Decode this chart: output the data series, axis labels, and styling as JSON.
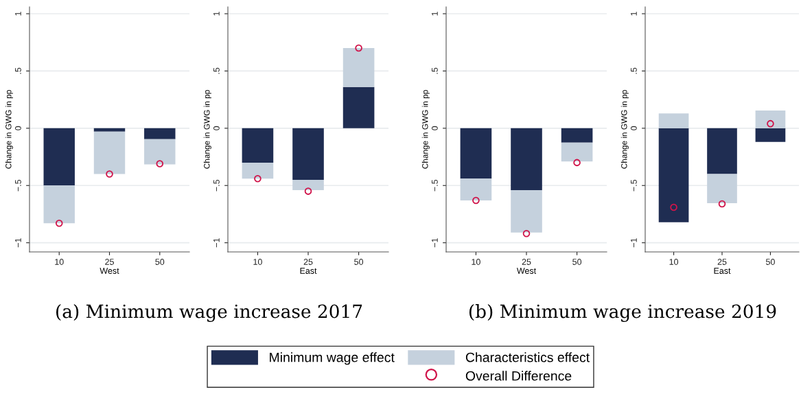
{
  "chart_data": [
    {
      "type": "bar",
      "stacked": true,
      "categories": [
        "10",
        "25",
        "50"
      ],
      "xlabel": "West",
      "ylabel": "Change in GWG in pp",
      "ylim": [
        -1.08,
        1.06
      ],
      "yticks": [
        {
          "value": -1,
          "label": "−1"
        },
        {
          "value": -0.5,
          "label": "−.5"
        },
        0,
        {
          "value": 0.5,
          "label": ".5"
        },
        1
      ],
      "grid": "y",
      "legend": "bottom",
      "annotations": [
        "(a) Minimum wage increase 2017"
      ],
      "series": [
        {
          "name": "Minimum wage effect",
          "color": "#1f2d52",
          "values": [
            -0.5,
            -0.03,
            -0.095
          ]
        },
        {
          "name": "Characteristics effect",
          "color": "#c5d1dd",
          "values": [
            -0.33,
            -0.37,
            -0.22
          ]
        },
        {
          "name": "Overall Difference",
          "type": "scatter",
          "marker": "circle",
          "color": "#d0144a",
          "x": [
            "10",
            "25",
            "50"
          ],
          "values": [
            -0.83,
            -0.4,
            -0.31
          ]
        }
      ]
    },
    {
      "type": "bar",
      "stacked": true,
      "categories": [
        "10",
        "25",
        "50"
      ],
      "xlabel": "East",
      "ylabel": "Change in GWG in pp",
      "ylim": [
        -1.08,
        1.06
      ],
      "yticks": [
        {
          "value": -1,
          "label": "−1"
        },
        {
          "value": -0.5,
          "label": "−.5"
        },
        0,
        {
          "value": 0.5,
          "label": ".5"
        },
        1
      ],
      "grid": "y",
      "series": [
        {
          "color": "#1f2d52",
          "values": [
            -0.3,
            -0.45,
            0.36
          ]
        },
        {
          "color": "#c5d1dd",
          "values": [
            -0.14,
            -0.09,
            0.34
          ]
        },
        {
          "type": "scatter",
          "marker": "circle",
          "color": "#d0144a",
          "x": [
            "10",
            "25",
            "50"
          ],
          "values": [
            -0.44,
            -0.55,
            0.7
          ]
        }
      ]
    },
    {
      "type": "bar",
      "stacked": true,
      "categories": [
        "10",
        "25",
        "50"
      ],
      "xlabel": "West",
      "ylabel": "Change in GWG in pp",
      "ylim": [
        -1.08,
        1.06
      ],
      "yticks": [
        {
          "value": -1,
          "label": "−1"
        },
        {
          "value": -0.5,
          "label": "−.5"
        },
        0,
        {
          "value": 0.5,
          "label": ".5"
        },
        1
      ],
      "grid": "y",
      "annotations": [
        "(b) Minimum wage increase 2019"
      ],
      "series": [
        {
          "color": "#1f2d52",
          "values": [
            -0.44,
            -0.54,
            -0.125
          ]
        },
        {
          "color": "#c5d1dd",
          "values": [
            -0.19,
            -0.37,
            -0.165
          ]
        },
        {
          "type": "scatter",
          "marker": "circle",
          "color": "#d0144a",
          "x": [
            "10",
            "25",
            "50"
          ],
          "values": [
            -0.63,
            -0.92,
            -0.3
          ]
        }
      ]
    },
    {
      "type": "bar",
      "stacked": true,
      "categories": [
        "10",
        "25",
        "50"
      ],
      "xlabel": "East",
      "ylabel": "Change in GWG in pp",
      "ylim": [
        -1.08,
        1.06
      ],
      "yticks": [
        {
          "value": -1,
          "label": "−1"
        },
        {
          "value": -0.5,
          "label": "−.5"
        },
        0,
        {
          "value": 0.5,
          "label": ".5"
        },
        1
      ],
      "grid": "y",
      "series": [
        {
          "color": "#1f2d52",
          "values": [
            -0.82,
            -0.4,
            -0.12
          ]
        },
        {
          "color": "#c5d1dd",
          "values": [
            0.13,
            -0.255,
            0.155
          ]
        },
        {
          "type": "scatter",
          "marker": "circle",
          "color": "#d0144a",
          "x": [
            "10",
            "25",
            "50"
          ],
          "values": [
            -0.69,
            -0.66,
            0.04
          ]
        }
      ]
    }
  ]
}
